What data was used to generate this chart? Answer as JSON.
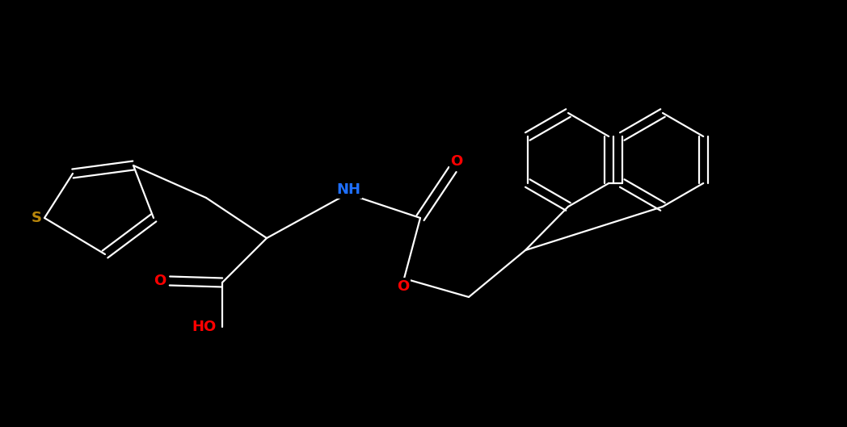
{
  "bg_color": "#000000",
  "bond_color": "#ffffff",
  "colors": {
    "C": "#ffffff",
    "N": "#1e6fff",
    "O": "#ff0000",
    "S": "#b8860b",
    "HO": "#ff0000"
  },
  "figsize": [
    10.48,
    5.29
  ],
  "dpi": 100,
  "font_size": 13,
  "font_size_small": 11
}
